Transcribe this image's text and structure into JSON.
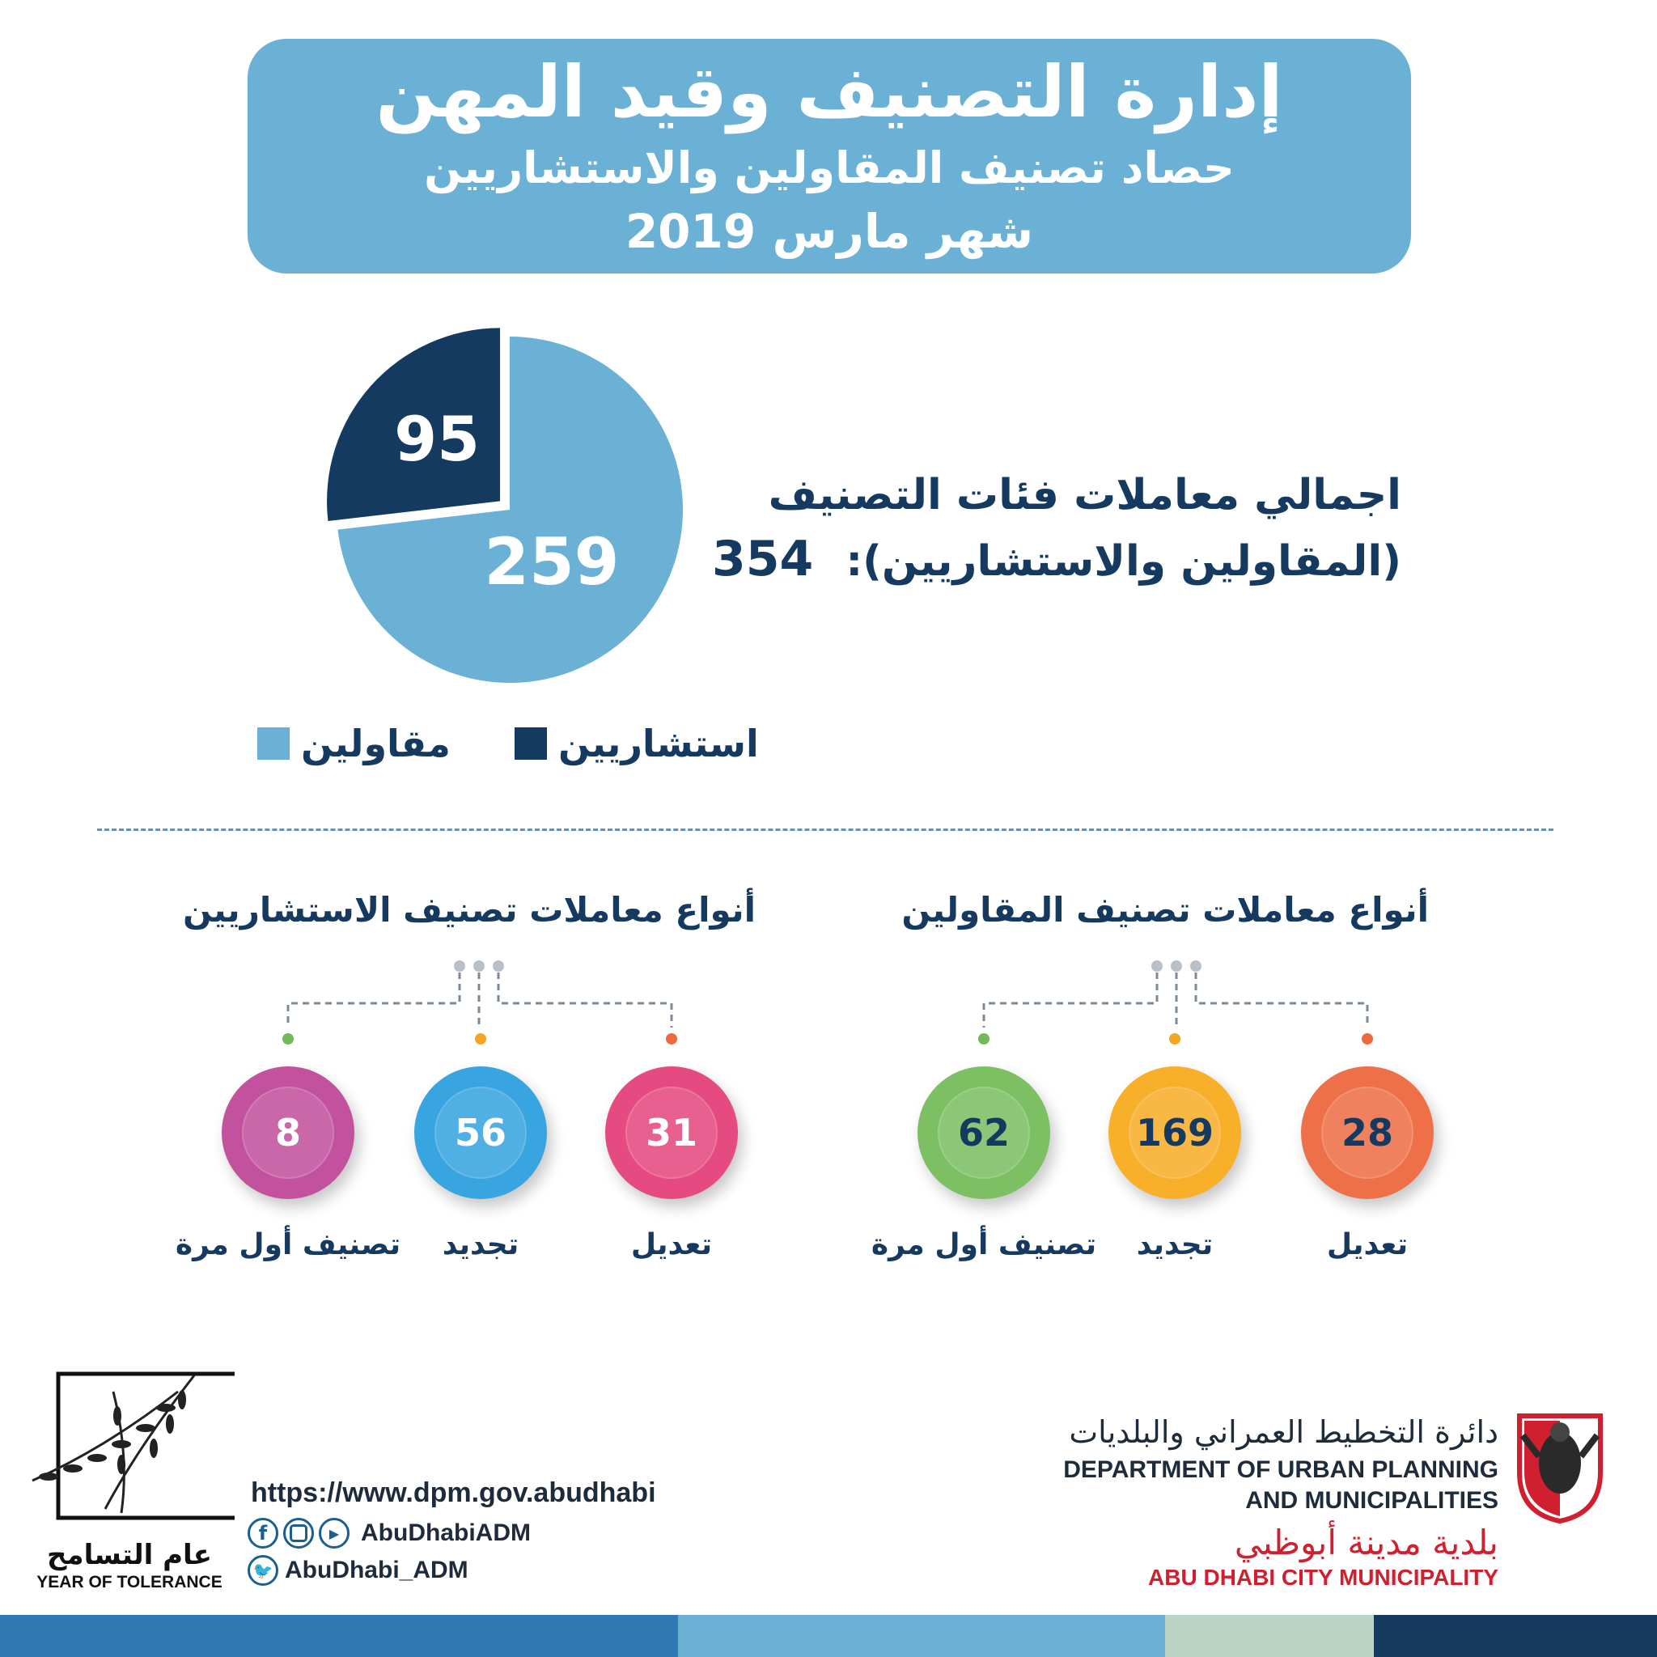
{
  "header": {
    "title": "إدارة التصنيف وقيد المهن",
    "subtitle": "حصاد تصنيف المقاولين والاستشاريين",
    "month": "شهر مارس 2019"
  },
  "colors": {
    "header_bg": "#6bb1d6",
    "contractors": "#6bb1d6",
    "consultants": "#143a60",
    "text_navy": "#163a5f",
    "red": "#d0202f"
  },
  "total": {
    "line1": "اجمالي معاملات فئات التصنيف",
    "line2": "(المقاولين والاستشاريين):",
    "value": "354"
  },
  "chart_data": [
    {
      "type": "pie",
      "slices": [
        {
          "name": "مقاولين",
          "value": 259,
          "color": "#6bb1d6"
        },
        {
          "name": "استشاريين",
          "value": 95,
          "color": "#143a60"
        }
      ],
      "legend": [
        "استشاريين",
        "مقاولين"
      ]
    },
    {
      "type": "bar",
      "title": "أنواع معاملات تصنيف المقاولين",
      "categories": [
        "تعديل",
        "تجديد",
        "تصنيف أول مرة"
      ],
      "values": [
        28,
        169,
        62
      ]
    },
    {
      "type": "bar",
      "title": "أنواع معاملات تصنيف الاستشاريين",
      "categories": [
        "تعديل",
        "تجديد",
        "تصنيف أول مرة"
      ],
      "values": [
        31,
        56,
        8
      ]
    }
  ],
  "contractors_group": {
    "title": "أنواع معاملات تصنيف المقاولين",
    "nodes": [
      {
        "value": "28",
        "label": "تعديل",
        "color": "#ee7049",
        "dot": "#ee6a3e"
      },
      {
        "value": "169",
        "label": "تجديد",
        "color": "#f8af2a",
        "dot": "#f4a622"
      },
      {
        "value": "62",
        "label": "تصنيف أول مرة",
        "color": "#7cc063",
        "dot": "#72b95a"
      }
    ]
  },
  "consultants_group": {
    "title": "أنواع معاملات تصنيف الاستشاريين",
    "nodes": [
      {
        "value": "31",
        "label": "تعديل",
        "color": "#e54a80",
        "dot": "#ee6a3e"
      },
      {
        "value": "56",
        "label": "تجديد",
        "color": "#38a4e0",
        "dot": "#f4a622"
      },
      {
        "value": "8",
        "label": "تصنيف أول مرة",
        "color": "#c2529e",
        "dot": "#72b95a"
      }
    ]
  },
  "footer": {
    "url": "https://www.dpm.gov.abudhabi",
    "social_handle": "AbuDhabiADM",
    "twitter_handle": "AbuDhabi_ADM",
    "tolerance_ar": "عام التسامح",
    "tolerance_en": "YEAR OF TOLERANCE",
    "dept_ar": "دائرة التخطيط العمراني والبلديات",
    "dept_en_1": "DEPARTMENT OF URBAN PLANNING",
    "dept_en_2": "AND MUNICIPALITIES",
    "muni_ar": "بلدية مدينة أبوظبي",
    "muni_en": "ABU DHABI CITY MUNICIPALITY"
  },
  "bottom_bar": [
    "#2f79b5",
    "#6bb1d6",
    "#b9d3c4",
    "#163a5f"
  ]
}
